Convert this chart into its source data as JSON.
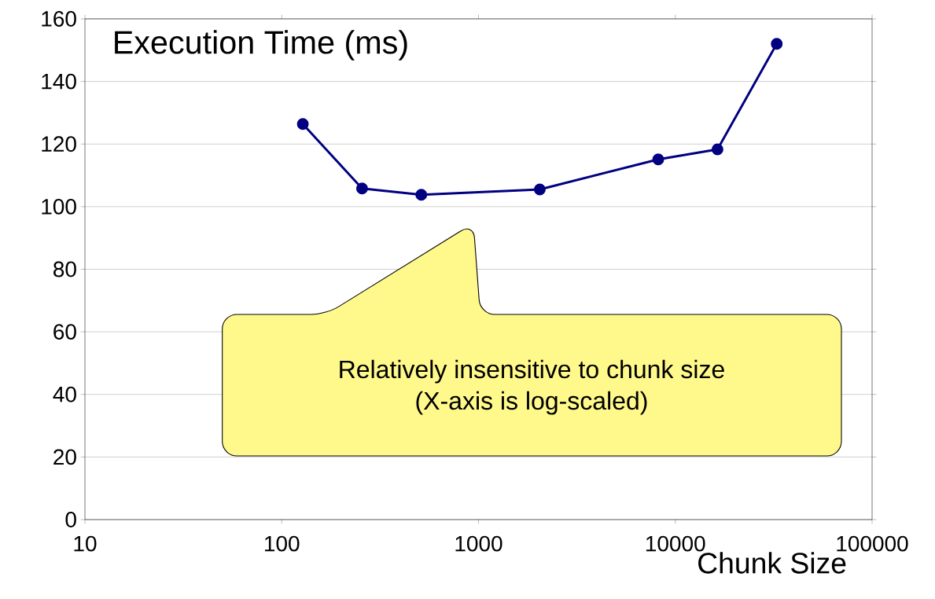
{
  "chart_data": {
    "type": "line",
    "title": "Execution Time (ms)",
    "xlabel": "Chunk Size",
    "annotations": [
      "Relatively insensitive to chunk size",
      "(X-axis is log-scaled)"
    ],
    "x": [
      128,
      256,
      512,
      2048,
      8192,
      16384,
      32768
    ],
    "series": [
      {
        "color": "#000080",
        "values": [
          126.4,
          105.8,
          103.8,
          105.5,
          115.1,
          118.3,
          152.0
        ]
      }
    ],
    "log": "x",
    "xlim": [
      10,
      100000
    ],
    "xticks": [
      10,
      100,
      1000,
      10000,
      100000
    ],
    "ylim": [
      0,
      160
    ],
    "yticks": [
      0,
      20,
      40,
      60,
      80,
      100,
      120,
      140,
      160
    ],
    "grid": "y",
    "marker": "circle",
    "line_style": "solid"
  }
}
